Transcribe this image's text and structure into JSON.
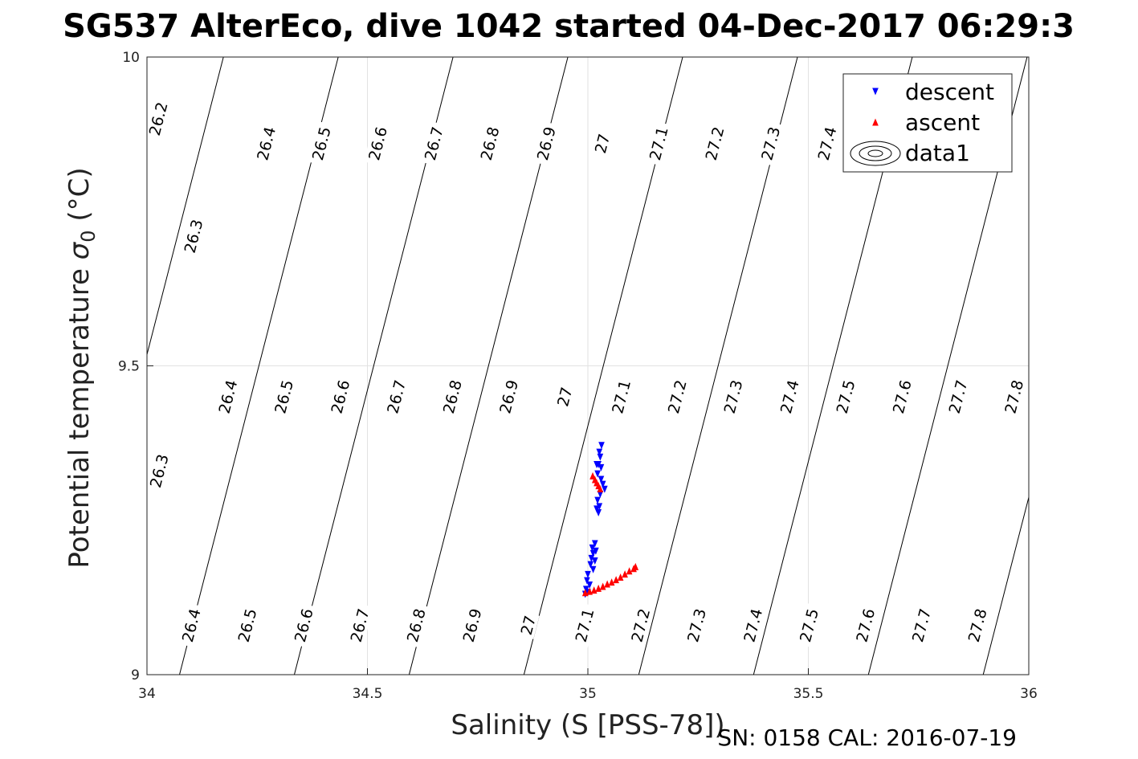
{
  "chart_data": {
    "type": "scatter",
    "title": "SG537 AlterEco, dive 1042 started 04-Dec-2017 06:29:3",
    "xlabel": "Salinity (S [PSS-78])",
    "ylabel_main": "Potential temperature ",
    "ylabel_sigma": "σ",
    "ylabel_sub": "0",
    "ylabel_unit": " (°C)",
    "footer": "SN: 0158  CAL: 2016-07-19",
    "xlim": [
      34,
      36
    ],
    "ylim": [
      9,
      10
    ],
    "grid": true,
    "legend_position": "top-right",
    "x_ticks": [
      {
        "value": 34,
        "label": "34"
      },
      {
        "value": 34.5,
        "label": "34.5"
      },
      {
        "value": 35,
        "label": "35"
      },
      {
        "value": 35.5,
        "label": "35.5"
      },
      {
        "value": 36,
        "label": "36"
      }
    ],
    "y_ticks": [
      {
        "value": 9,
        "label": "9"
      },
      {
        "value": 9.5,
        "label": "9.5"
      },
      {
        "value": 10,
        "label": "10"
      }
    ],
    "series": [
      {
        "name": "descent",
        "color": "#0000ff",
        "marker": "triangle-down",
        "points": [
          [
            35.031,
            9.371
          ],
          [
            35.026,
            9.36
          ],
          [
            35.028,
            9.352
          ],
          [
            35.024,
            9.34
          ],
          [
            35.02,
            9.34
          ],
          [
            35.03,
            9.335
          ],
          [
            35.022,
            9.325
          ],
          [
            35.03,
            9.316
          ],
          [
            35.034,
            9.308
          ],
          [
            35.038,
            9.3
          ],
          [
            35.028,
            9.292
          ],
          [
            35.022,
            9.282
          ],
          [
            35.026,
            9.272
          ],
          [
            35.02,
            9.268
          ],
          [
            35.024,
            9.262
          ],
          [
            35.016,
            9.212
          ],
          [
            35.01,
            9.205
          ],
          [
            35.018,
            9.2
          ],
          [
            35.012,
            9.196
          ],
          [
            35.008,
            9.188
          ],
          [
            35.016,
            9.184
          ],
          [
            35.006,
            9.178
          ],
          [
            35.012,
            9.17
          ],
          [
            35.0,
            9.162
          ],
          [
            34.998,
            9.152
          ],
          [
            35.004,
            9.145
          ],
          [
            34.996,
            9.138
          ],
          [
            35.0,
            9.133
          ],
          [
            34.994,
            9.13
          ]
        ]
      },
      {
        "name": "ascent",
        "color": "#ff0000",
        "marker": "triangle-up",
        "points": [
          [
            35.011,
            9.322
          ],
          [
            35.016,
            9.316
          ],
          [
            35.02,
            9.311
          ],
          [
            35.024,
            9.306
          ],
          [
            35.028,
            9.301
          ],
          [
            34.994,
            9.133
          ],
          [
            35.004,
            9.135
          ],
          [
            35.014,
            9.137
          ],
          [
            35.024,
            9.14
          ],
          [
            35.034,
            9.143
          ],
          [
            35.044,
            9.147
          ],
          [
            35.054,
            9.15
          ],
          [
            35.064,
            9.154
          ],
          [
            35.074,
            9.158
          ],
          [
            35.084,
            9.163
          ],
          [
            35.094,
            9.168
          ],
          [
            35.104,
            9.172
          ],
          [
            35.108,
            9.175
          ]
        ]
      }
    ],
    "legend_entries": [
      {
        "label": "descent",
        "color": "#0000ff",
        "marker": "triangle-down"
      },
      {
        "label": "ascent",
        "color": "#ff0000",
        "marker": "triangle-up"
      },
      {
        "label": "data1",
        "color": "#000000",
        "marker": "contour"
      }
    ],
    "contours": {
      "slope_psu_per_degC": 0.36,
      "density_step_per_0_1": 0.2604,
      "anchor": {
        "value": 27.0,
        "S_at_theta_9": 34.855
      },
      "min": 26.1,
      "max": 27.9,
      "step": 0.1,
      "labels": [
        {
          "text": "26.2",
          "x": 34.025,
          "y": 9.9
        },
        {
          "text": "26.4",
          "x": 34.27,
          "y": 9.86
        },
        {
          "text": "26.5",
          "x": 34.395,
          "y": 9.86
        },
        {
          "text": "26.6",
          "x": 34.523,
          "y": 9.86
        },
        {
          "text": "26.7",
          "x": 34.65,
          "y": 9.86
        },
        {
          "text": "26.8",
          "x": 34.777,
          "y": 9.86
        },
        {
          "text": "26.9",
          "x": 34.905,
          "y": 9.86
        },
        {
          "text": "27",
          "x": 35.032,
          "y": 9.86
        },
        {
          "text": "27.1",
          "x": 35.16,
          "y": 9.86
        },
        {
          "text": "27.2",
          "x": 35.287,
          "y": 9.86
        },
        {
          "text": "27.3",
          "x": 35.414,
          "y": 9.86
        },
        {
          "text": "27.4",
          "x": 35.542,
          "y": 9.86
        },
        {
          "text": "26.3",
          "x": 34.105,
          "y": 9.71
        },
        {
          "text": "26.4",
          "x": 34.183,
          "y": 9.45
        },
        {
          "text": "26.5",
          "x": 34.31,
          "y": 9.45
        },
        {
          "text": "26.6",
          "x": 34.438,
          "y": 9.45
        },
        {
          "text": "26.7",
          "x": 34.565,
          "y": 9.45
        },
        {
          "text": "26.8",
          "x": 34.692,
          "y": 9.45
        },
        {
          "text": "26.9",
          "x": 34.82,
          "y": 9.45
        },
        {
          "text": "27",
          "x": 34.947,
          "y": 9.45
        },
        {
          "text": "27.1",
          "x": 35.075,
          "y": 9.45
        },
        {
          "text": "27.2",
          "x": 35.202,
          "y": 9.45
        },
        {
          "text": "27.3",
          "x": 35.329,
          "y": 9.45
        },
        {
          "text": "27.4",
          "x": 35.457,
          "y": 9.45
        },
        {
          "text": "27.5",
          "x": 35.584,
          "y": 9.45
        },
        {
          "text": "27.6",
          "x": 35.712,
          "y": 9.45
        },
        {
          "text": "27.7",
          "x": 35.839,
          "y": 9.45
        },
        {
          "text": "27.8",
          "x": 35.966,
          "y": 9.45
        },
        {
          "text": "26.3",
          "x": 34.027,
          "y": 9.33
        },
        {
          "text": "26.4",
          "x": 34.1,
          "y": 9.08
        },
        {
          "text": "26.5",
          "x": 34.227,
          "y": 9.08
        },
        {
          "text": "26.6",
          "x": 34.355,
          "y": 9.08
        },
        {
          "text": "26.7",
          "x": 34.482,
          "y": 9.08
        },
        {
          "text": "26.8",
          "x": 34.61,
          "y": 9.08
        },
        {
          "text": "26.9",
          "x": 34.737,
          "y": 9.08
        },
        {
          "text": "27",
          "x": 34.864,
          "y": 9.08
        },
        {
          "text": "27.1",
          "x": 34.992,
          "y": 9.08
        },
        {
          "text": "27.2",
          "x": 35.119,
          "y": 9.08
        },
        {
          "text": "27.3",
          "x": 35.246,
          "y": 9.08
        },
        {
          "text": "27.4",
          "x": 35.374,
          "y": 9.08
        },
        {
          "text": "27.5",
          "x": 35.501,
          "y": 9.08
        },
        {
          "text": "27.6",
          "x": 35.629,
          "y": 9.08
        },
        {
          "text": "27.7",
          "x": 35.756,
          "y": 9.08
        },
        {
          "text": "27.8",
          "x": 35.883,
          "y": 9.08
        }
      ]
    }
  }
}
